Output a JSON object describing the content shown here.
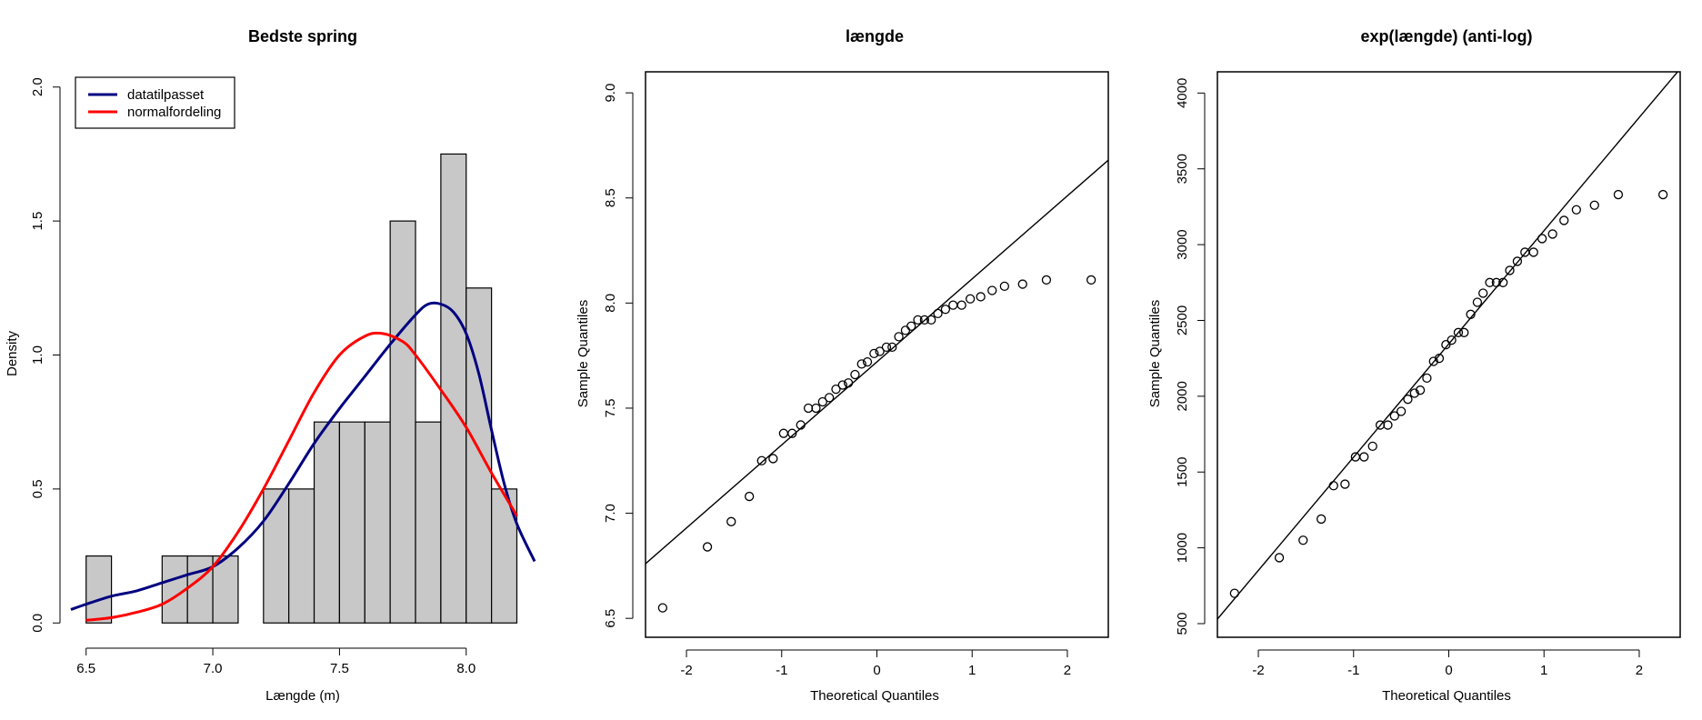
{
  "chart_data": [
    {
      "type": "histogram",
      "title": "Bedste spring",
      "xlabel": "Længde (m)",
      "ylabel": "Density",
      "xlim": [
        6.44,
        8.27
      ],
      "ylim": [
        -0.05,
        2.05
      ],
      "xticks": [
        "6.5",
        "7.0",
        "7.5",
        "8.0"
      ],
      "yticks": [
        "0.0",
        "0.5",
        "1.0",
        "1.5",
        "2.0"
      ],
      "bar_color": "#c8c8c8",
      "bins": [
        {
          "x0": 6.5,
          "x1": 6.6,
          "value": 0.25
        },
        {
          "x0": 6.6,
          "x1": 6.7,
          "value": 0.0
        },
        {
          "x0": 6.7,
          "x1": 6.8,
          "value": 0.0
        },
        {
          "x0": 6.8,
          "x1": 6.9,
          "value": 0.25
        },
        {
          "x0": 6.9,
          "x1": 7.0,
          "value": 0.25
        },
        {
          "x0": 7.0,
          "x1": 7.1,
          "value": 0.25
        },
        {
          "x0": 7.1,
          "x1": 7.2,
          "value": 0.0
        },
        {
          "x0": 7.2,
          "x1": 7.3,
          "value": 0.5
        },
        {
          "x0": 7.3,
          "x1": 7.4,
          "value": 0.5
        },
        {
          "x0": 7.4,
          "x1": 7.5,
          "value": 0.75
        },
        {
          "x0": 7.5,
          "x1": 7.6,
          "value": 0.75
        },
        {
          "x0": 7.6,
          "x1": 7.7,
          "value": 0.75
        },
        {
          "x0": 7.7,
          "x1": 7.8,
          "value": 1.5
        },
        {
          "x0": 7.8,
          "x1": 7.9,
          "value": 0.75
        },
        {
          "x0": 7.9,
          "x1": 8.0,
          "value": 1.75
        },
        {
          "x0": 8.0,
          "x1": 8.1,
          "value": 1.25
        },
        {
          "x0": 8.1,
          "x1": 8.2,
          "value": 0.5
        }
      ],
      "legend": {
        "position": "top-left",
        "entries": [
          {
            "label": "datatilpasset",
            "color": "#000080"
          },
          {
            "label": "normalfordeling",
            "color": "#ff0000"
          }
        ]
      },
      "series": [
        {
          "name": "datatilpasset",
          "color": "#000080",
          "x": [
            6.44,
            6.5,
            6.6,
            6.7,
            6.8,
            6.9,
            7.0,
            7.1,
            7.2,
            7.3,
            7.4,
            7.5,
            7.6,
            7.7,
            7.8,
            7.85,
            7.9,
            7.95,
            8.0,
            8.05,
            8.1,
            8.15,
            8.2,
            8.27
          ],
          "y": [
            0.05,
            0.07,
            0.1,
            0.12,
            0.15,
            0.18,
            0.21,
            0.28,
            0.38,
            0.52,
            0.67,
            0.8,
            0.92,
            1.04,
            1.15,
            1.19,
            1.19,
            1.16,
            1.08,
            0.93,
            0.72,
            0.52,
            0.37,
            0.23
          ]
        },
        {
          "name": "normalfordeling",
          "color": "#ff0000",
          "x": [
            6.5,
            6.6,
            6.7,
            6.8,
            6.9,
            7.0,
            7.1,
            7.2,
            7.3,
            7.4,
            7.5,
            7.6,
            7.67,
            7.75,
            7.8,
            7.9,
            8.0,
            8.1,
            8.2
          ],
          "y": [
            0.01,
            0.02,
            0.04,
            0.07,
            0.13,
            0.21,
            0.34,
            0.5,
            0.68,
            0.86,
            1.0,
            1.07,
            1.08,
            1.05,
            1.0,
            0.87,
            0.73,
            0.56,
            0.4
          ]
        }
      ]
    },
    {
      "type": "scatter",
      "title": "længde",
      "xlabel": "Theoretical Quantiles",
      "ylabel": "Sample Quantiles",
      "xlim": [
        -2.43,
        2.43
      ],
      "ylim": [
        6.41,
        9.1
      ],
      "xticks": [
        "-2",
        "-1",
        "0",
        "1",
        "2"
      ],
      "yticks": [
        "6.5",
        "7.0",
        "7.5",
        "8.0",
        "8.5",
        "9.0"
      ],
      "reference_line": {
        "slope": 0.395,
        "intercept": 7.72
      },
      "points": [
        [
          -2.25,
          6.55
        ],
        [
          -1.78,
          6.84
        ],
        [
          -1.53,
          6.96
        ],
        [
          -1.34,
          7.08
        ],
        [
          -1.21,
          7.25
        ],
        [
          -1.09,
          7.26
        ],
        [
          -0.98,
          7.38
        ],
        [
          -0.89,
          7.38
        ],
        [
          -0.8,
          7.42
        ],
        [
          -0.72,
          7.5
        ],
        [
          -0.64,
          7.5
        ],
        [
          -0.57,
          7.53
        ],
        [
          -0.5,
          7.55
        ],
        [
          -0.43,
          7.59
        ],
        [
          -0.36,
          7.61
        ],
        [
          -0.3,
          7.62
        ],
        [
          -0.23,
          7.66
        ],
        [
          -0.16,
          7.71
        ],
        [
          -0.1,
          7.72
        ],
        [
          -0.03,
          7.76
        ],
        [
          0.03,
          7.77
        ],
        [
          0.1,
          7.79
        ],
        [
          0.16,
          7.79
        ],
        [
          0.23,
          7.84
        ],
        [
          0.3,
          7.87
        ],
        [
          0.36,
          7.89
        ],
        [
          0.43,
          7.92
        ],
        [
          0.5,
          7.92
        ],
        [
          0.57,
          7.92
        ],
        [
          0.64,
          7.95
        ],
        [
          0.72,
          7.97
        ],
        [
          0.8,
          7.99
        ],
        [
          0.89,
          7.99
        ],
        [
          0.98,
          8.02
        ],
        [
          1.09,
          8.03
        ],
        [
          1.21,
          8.06
        ],
        [
          1.34,
          8.08
        ],
        [
          1.53,
          8.09
        ],
        [
          1.78,
          8.11
        ],
        [
          2.25,
          8.11
        ]
      ]
    },
    {
      "type": "scatter",
      "title": "exp(længde) (anti-log)",
      "xlabel": "Theoretical Quantiles",
      "ylabel": "Sample Quantiles",
      "xlim": [
        -2.43,
        2.43
      ],
      "ylim": [
        410,
        4140
      ],
      "xticks": [
        "-2",
        "-1",
        "0",
        "1",
        "2"
      ],
      "yticks": [
        "500",
        "1000",
        "1500",
        "2000",
        "2500",
        "3000",
        "3500",
        "4000"
      ],
      "reference_line": {
        "slope": 747,
        "intercept": 2345
      },
      "points": [
        [
          -2.25,
          700
        ],
        [
          -1.78,
          935
        ],
        [
          -1.53,
          1050
        ],
        [
          -1.34,
          1190
        ],
        [
          -1.21,
          1410
        ],
        [
          -1.09,
          1420
        ],
        [
          -0.98,
          1600
        ],
        [
          -0.89,
          1600
        ],
        [
          -0.8,
          1670
        ],
        [
          -0.72,
          1810
        ],
        [
          -0.64,
          1810
        ],
        [
          -0.57,
          1870
        ],
        [
          -0.5,
          1900
        ],
        [
          -0.43,
          1980
        ],
        [
          -0.36,
          2020
        ],
        [
          -0.3,
          2040
        ],
        [
          -0.23,
          2120
        ],
        [
          -0.16,
          2230
        ],
        [
          -0.1,
          2250
        ],
        [
          -0.03,
          2340
        ],
        [
          0.03,
          2370
        ],
        [
          0.1,
          2420
        ],
        [
          0.16,
          2420
        ],
        [
          0.23,
          2540
        ],
        [
          0.3,
          2620
        ],
        [
          0.36,
          2680
        ],
        [
          0.43,
          2750
        ],
        [
          0.5,
          2750
        ],
        [
          0.57,
          2750
        ],
        [
          0.64,
          2830
        ],
        [
          0.72,
          2890
        ],
        [
          0.8,
          2950
        ],
        [
          0.89,
          2950
        ],
        [
          0.98,
          3040
        ],
        [
          1.09,
          3070
        ],
        [
          1.21,
          3160
        ],
        [
          1.34,
          3230
        ],
        [
          1.53,
          3260
        ],
        [
          1.78,
          3330
        ],
        [
          2.25,
          3330
        ]
      ]
    }
  ]
}
